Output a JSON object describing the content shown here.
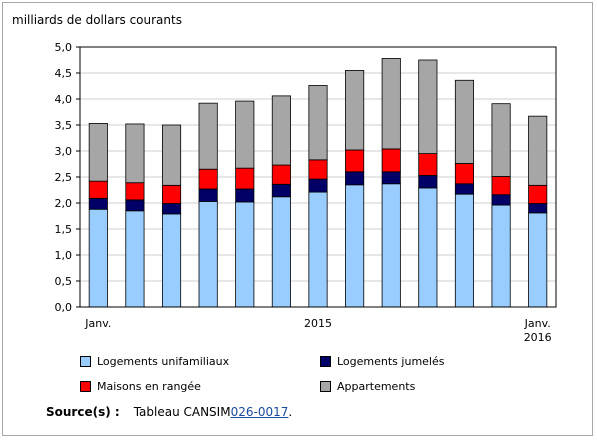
{
  "chart_data": {
    "type": "bar",
    "stacked": true,
    "ylabel": "milliards de dollars courants",
    "ylim": [
      0,
      5
    ],
    "yticks": [
      "0,0",
      "0,5",
      "1,0",
      "1,5",
      "2,0",
      "2,5",
      "3,0",
      "3,5",
      "4,0",
      "4,5",
      "5,0"
    ],
    "xtick_labels": [
      {
        "index": 0,
        "lines": [
          "Janv."
        ]
      },
      {
        "index": 6,
        "lines": [
          "2015"
        ]
      },
      {
        "index": 12,
        "lines": [
          "Janv.",
          "2016"
        ]
      }
    ],
    "categories": [
      "2015-01",
      "2015-02",
      "2015-03",
      "2015-04",
      "2015-05",
      "2015-06",
      "2015-07",
      "2015-08",
      "2015-09",
      "2015-10",
      "2015-11",
      "2015-12",
      "2016-01"
    ],
    "series": [
      {
        "name": "Logements unifamiliaux",
        "color": "#99ccff",
        "values": [
          1.88,
          1.85,
          1.79,
          2.03,
          2.02,
          2.12,
          2.21,
          2.35,
          2.37,
          2.29,
          2.17,
          1.96,
          1.81
        ]
      },
      {
        "name": "Logements jumelés",
        "color": "#000066",
        "values": [
          0.21,
          0.21,
          0.2,
          0.24,
          0.25,
          0.24,
          0.25,
          0.25,
          0.23,
          0.24,
          0.2,
          0.2,
          0.18
        ]
      },
      {
        "name": "Maisons en rangée",
        "color": "#ff0000",
        "values": [
          0.33,
          0.33,
          0.35,
          0.38,
          0.4,
          0.37,
          0.37,
          0.42,
          0.44,
          0.42,
          0.39,
          0.35,
          0.35
        ]
      },
      {
        "name": "Appartements",
        "color": "#a6a6a6",
        "values": [
          1.11,
          1.13,
          1.16,
          1.27,
          1.29,
          1.33,
          1.43,
          1.53,
          1.74,
          1.8,
          1.6,
          1.4,
          1.33
        ]
      }
    ],
    "grid": true,
    "legend": "bottom"
  },
  "source": {
    "label": "Source(s) :",
    "text": "Tableau CANSIM ",
    "link": "026-0017",
    "suffix": "."
  }
}
